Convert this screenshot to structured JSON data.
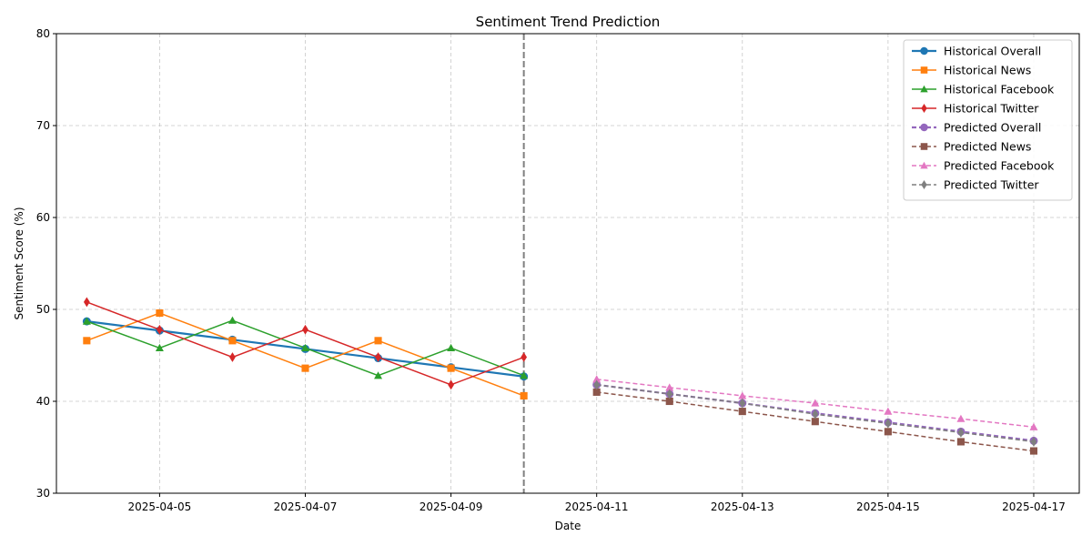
{
  "chart_data": {
    "type": "line",
    "title": "Sentiment Trend Prediction",
    "xlabel": "Date",
    "ylabel": "Sentiment Score (%)",
    "ylim": [
      30,
      80
    ],
    "xlim": [
      "2025-04-03T14:00",
      "2025-04-17T15:00"
    ],
    "yticks": [
      30,
      40,
      50,
      60,
      70,
      80
    ],
    "xticks": [
      "2025-04-05",
      "2025-04-07",
      "2025-04-09",
      "2025-04-11",
      "2025-04-13",
      "2025-04-15",
      "2025-04-17"
    ],
    "grid": true,
    "legend_position": "top-right",
    "divider_x": "2025-04-10",
    "series": [
      {
        "name": "Historical Overall",
        "color": "#1f77b4",
        "marker": "circle",
        "style": "solid",
        "width": "thick",
        "x": [
          "2025-04-04",
          "2025-04-05",
          "2025-04-06",
          "2025-04-07",
          "2025-04-08",
          "2025-04-09",
          "2025-04-10"
        ],
        "values": [
          48.7,
          47.7,
          46.7,
          45.7,
          44.7,
          43.7,
          42.7
        ]
      },
      {
        "name": "Historical News",
        "color": "#ff7f0e",
        "marker": "square",
        "style": "solid",
        "width": "normal",
        "x": [
          "2025-04-04",
          "2025-04-05",
          "2025-04-06",
          "2025-04-07",
          "2025-04-08",
          "2025-04-09",
          "2025-04-10"
        ],
        "values": [
          46.6,
          49.6,
          46.6,
          43.6,
          46.6,
          43.6,
          40.6
        ]
      },
      {
        "name": "Historical Facebook",
        "color": "#2ca02c",
        "marker": "triangle",
        "style": "solid",
        "width": "normal",
        "x": [
          "2025-04-04",
          "2025-04-05",
          "2025-04-06",
          "2025-04-07",
          "2025-04-08",
          "2025-04-09",
          "2025-04-10"
        ],
        "values": [
          48.7,
          45.8,
          48.8,
          45.8,
          42.8,
          45.8,
          42.8
        ]
      },
      {
        "name": "Historical Twitter",
        "color": "#d62728",
        "marker": "diamond",
        "style": "solid",
        "width": "normal",
        "x": [
          "2025-04-04",
          "2025-04-05",
          "2025-04-06",
          "2025-04-07",
          "2025-04-08",
          "2025-04-09",
          "2025-04-10"
        ],
        "values": [
          50.8,
          47.8,
          44.8,
          47.8,
          44.8,
          41.8,
          44.8
        ]
      },
      {
        "name": "Predicted Overall",
        "color": "#9467bd",
        "marker": "circle",
        "style": "dashed",
        "width": "thick",
        "x": [
          "2025-04-11",
          "2025-04-12",
          "2025-04-13",
          "2025-04-14",
          "2025-04-15",
          "2025-04-16",
          "2025-04-17"
        ],
        "values": [
          41.8,
          40.8,
          39.8,
          38.7,
          37.7,
          36.7,
          35.7
        ]
      },
      {
        "name": "Predicted News",
        "color": "#8c564b",
        "marker": "square",
        "style": "dashed",
        "width": "normal",
        "x": [
          "2025-04-11",
          "2025-04-12",
          "2025-04-13",
          "2025-04-14",
          "2025-04-15",
          "2025-04-16",
          "2025-04-17"
        ],
        "values": [
          41.0,
          40.0,
          38.9,
          37.8,
          36.7,
          35.6,
          34.6
        ]
      },
      {
        "name": "Predicted Facebook",
        "color": "#e377c2",
        "marker": "triangle",
        "style": "dashed",
        "width": "normal",
        "x": [
          "2025-04-11",
          "2025-04-12",
          "2025-04-13",
          "2025-04-14",
          "2025-04-15",
          "2025-04-16",
          "2025-04-17"
        ],
        "values": [
          42.4,
          41.5,
          40.6,
          39.8,
          38.9,
          38.1,
          37.2
        ]
      },
      {
        "name": "Predicted Twitter",
        "color": "#7f7f7f",
        "marker": "diamond",
        "style": "dashed",
        "width": "normal",
        "x": [
          "2025-04-11",
          "2025-04-12",
          "2025-04-13",
          "2025-04-14",
          "2025-04-15",
          "2025-04-16",
          "2025-04-17"
        ],
        "values": [
          41.8,
          40.8,
          39.8,
          38.6,
          37.6,
          36.6,
          35.6
        ]
      }
    ]
  }
}
